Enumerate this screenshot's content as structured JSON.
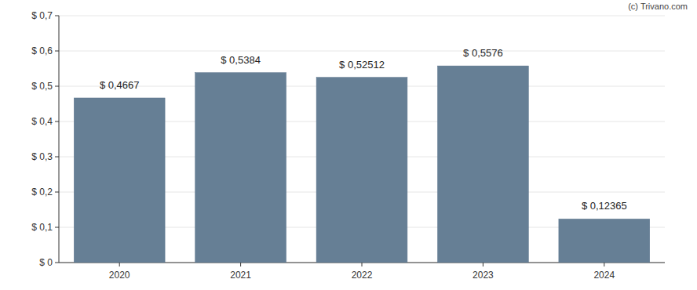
{
  "chart_data": {
    "type": "bar",
    "annotations": [
      "(c) Trivano.com"
    ],
    "categories": [
      "2020",
      "2021",
      "2022",
      "2023",
      "2024"
    ],
    "values": [
      0.4667,
      0.5384,
      0.52512,
      0.5576,
      0.12365
    ],
    "value_labels": [
      "$ 0,4667",
      "$ 0,5384",
      "$ 0,52512",
      "$ 0,5576",
      "$ 0,12365"
    ],
    "data_labels": true,
    "color": "#667f95",
    "ylim": [
      0,
      0.7
    ],
    "yticks": [
      {
        "value": 0,
        "label": "$ 0"
      },
      {
        "value": 0.1,
        "label": "$ 0,1"
      },
      {
        "value": 0.2,
        "label": "$ 0,2"
      },
      {
        "value": 0.3,
        "label": "$ 0,3"
      },
      {
        "value": 0.4,
        "label": "$ 0,4"
      },
      {
        "value": 0.5,
        "label": "$ 0,5"
      },
      {
        "value": 0.6,
        "label": "$ 0,6"
      },
      {
        "value": 0.7,
        "label": "$ 0,7"
      }
    ],
    "grid": true
  }
}
